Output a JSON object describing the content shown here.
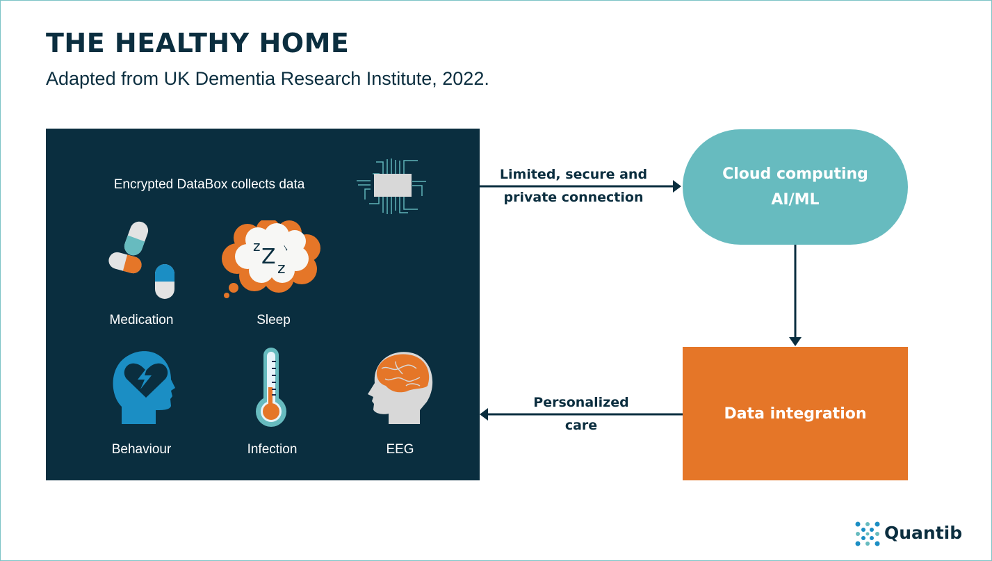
{
  "header": {
    "title": "THE HEALTHY HOME",
    "subtitle": "Adapted from UK Dementia Research Institute, 2022."
  },
  "home_box": {
    "caption": "Encrypted DataBox collects data",
    "items": [
      {
        "label": "Medication",
        "icon": "pills-icon"
      },
      {
        "label": "Sleep",
        "icon": "thought-cloud-zzz-icon"
      },
      {
        "label": "Behaviour",
        "icon": "head-heart-icon"
      },
      {
        "label": "Infection",
        "icon": "thermometer-icon"
      },
      {
        "label": "EEG",
        "icon": "head-brain-icon"
      }
    ],
    "chip_icon": "microchip-icon"
  },
  "arrows": {
    "to_cloud": {
      "line1": "Limited, secure and",
      "line2": "private connection"
    },
    "to_home": {
      "line1": "Personalized",
      "line2": "care"
    }
  },
  "cloud": {
    "line1": "Cloud computing",
    "line2": "AI/ML"
  },
  "integration": {
    "label": "Data integration"
  },
  "logo": {
    "text": "Quantib"
  },
  "colors": {
    "navy": "#0a2e3f",
    "teal": "#67bbbf",
    "orange": "#e57628",
    "blue": "#1b8ec4",
    "grey": "#d9d9d9"
  }
}
